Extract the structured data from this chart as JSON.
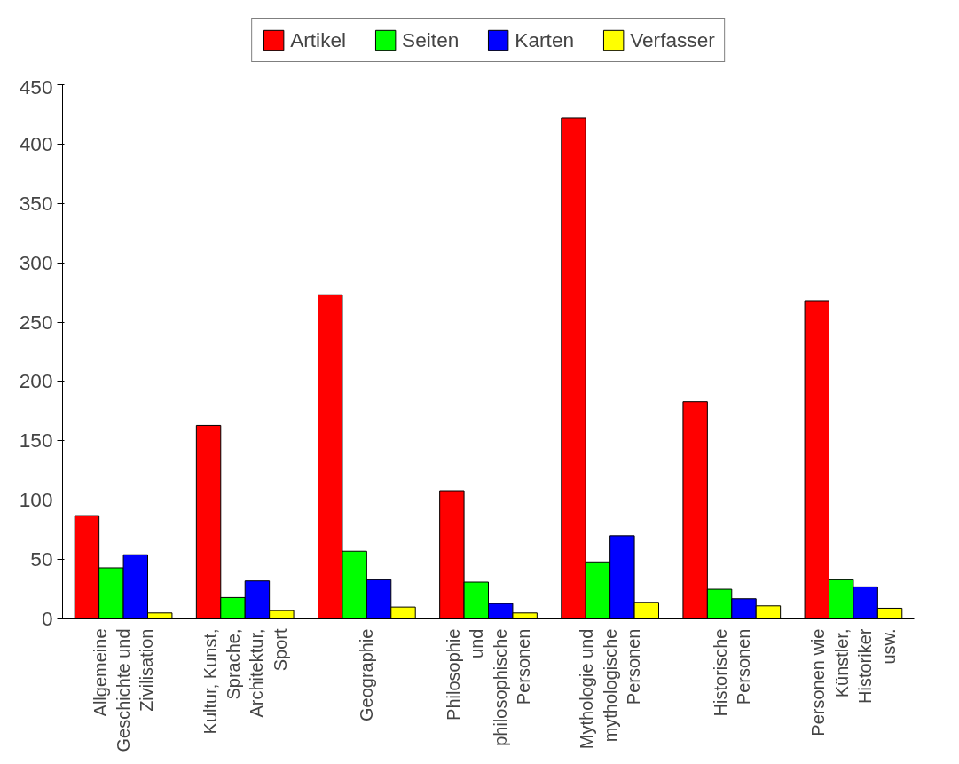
{
  "chart_data": {
    "type": "bar",
    "categories": [
      "Allgemeine Geschichte und Zivilisation",
      "Kultur, Kunst, Sprache, Architektur, Sport",
      "Geographie",
      "Philosophie und philosophische Personen",
      "Mythologie und mythologische Personen",
      "Historische Personen",
      "Personen wie Künstler, Historiker usw."
    ],
    "series": [
      {
        "name": "Artikel",
        "color": "#ff0000",
        "values": [
          87,
          163,
          273,
          108,
          422,
          183,
          268
        ]
      },
      {
        "name": "Seiten",
        "color": "#00ff00",
        "values": [
          43,
          18,
          57,
          31,
          48,
          25,
          33
        ]
      },
      {
        "name": "Karten",
        "color": "#0000ff",
        "values": [
          54,
          32,
          33,
          13,
          70,
          17,
          27
        ]
      },
      {
        "name": "Verfasser",
        "color": "#ffff00",
        "values": [
          5,
          7,
          10,
          5,
          14,
          11,
          9
        ]
      }
    ],
    "ylim": [
      0,
      450
    ],
    "yticks": [
      0,
      50,
      100,
      150,
      200,
      250,
      300,
      350,
      400,
      450
    ],
    "grid": false,
    "legend": "top"
  }
}
